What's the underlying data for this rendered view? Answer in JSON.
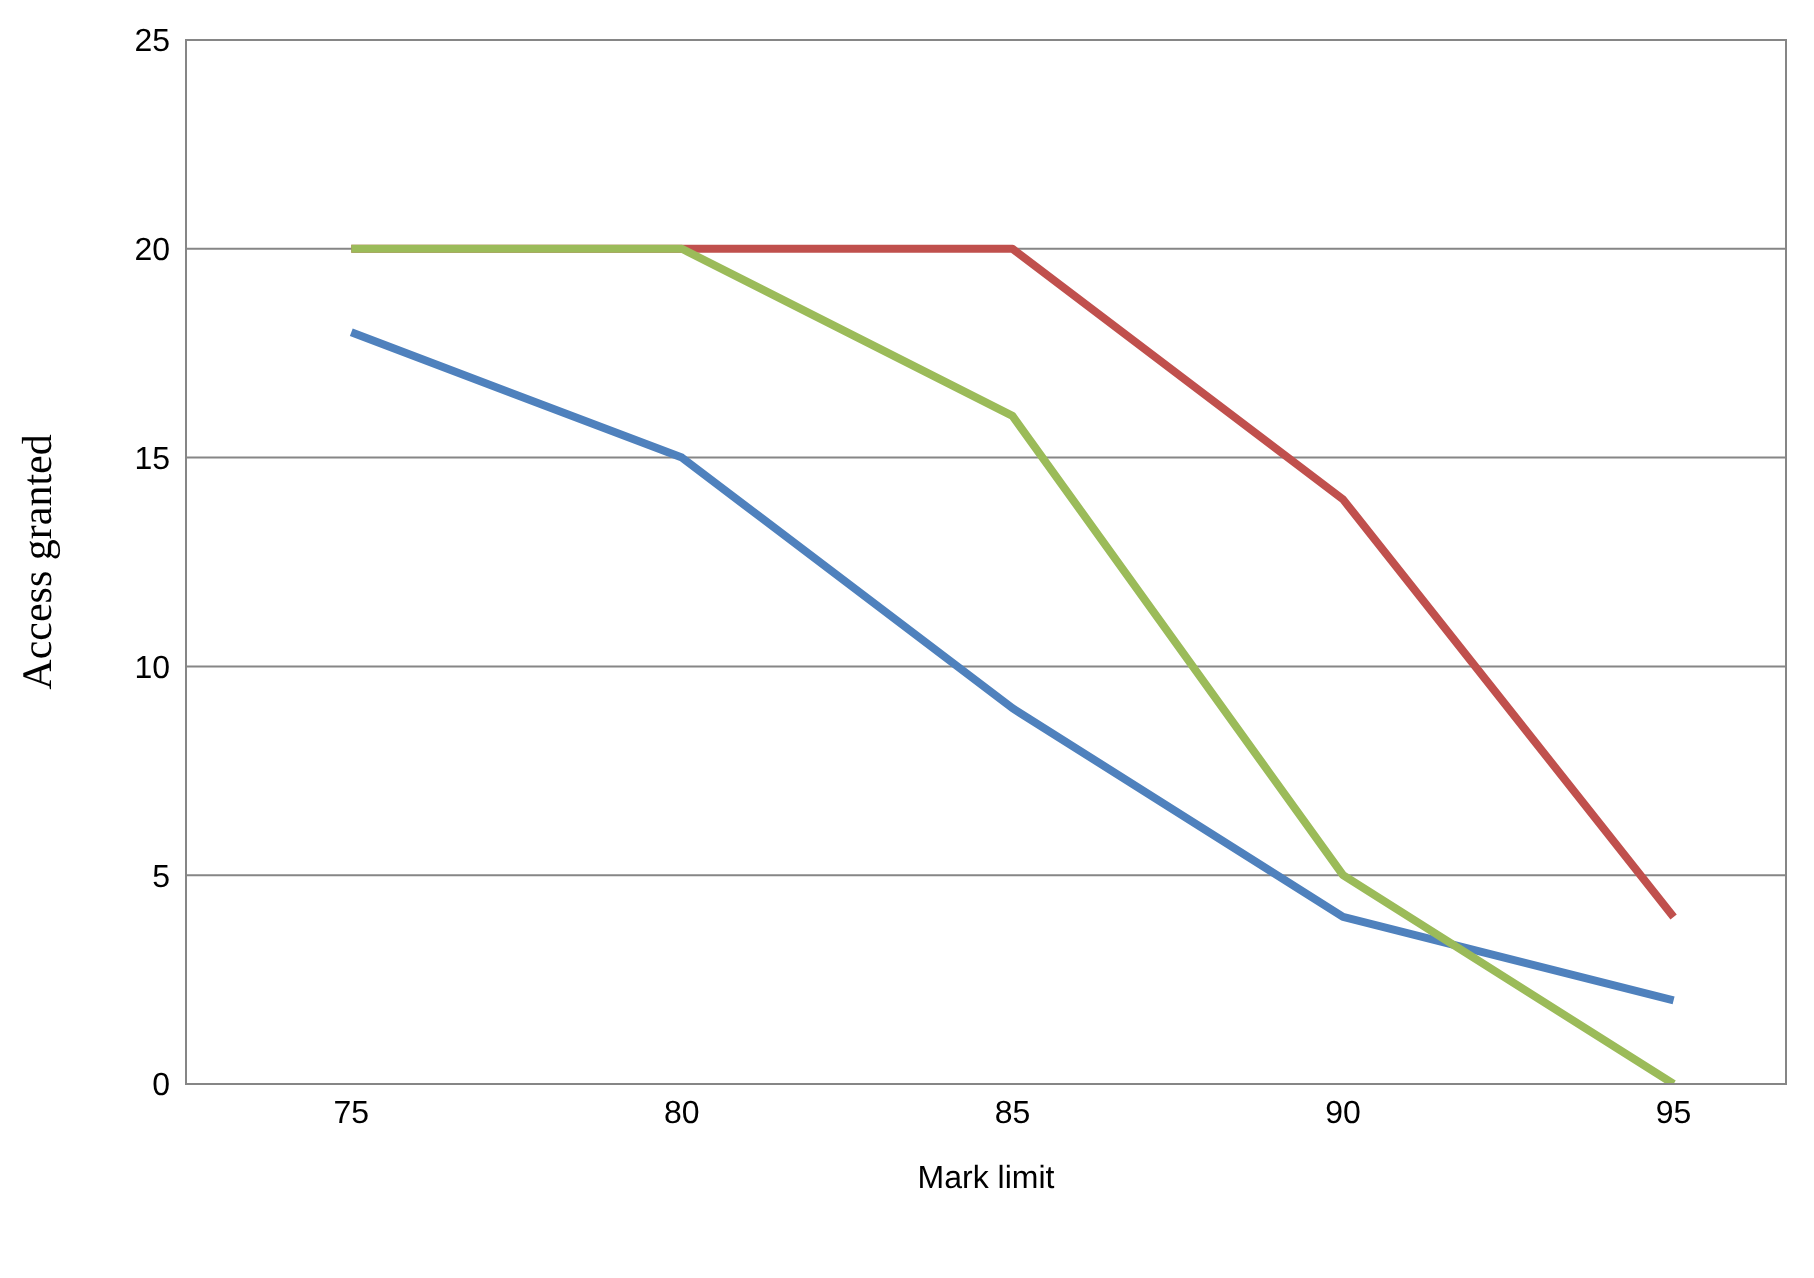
{
  "chart_data": {
    "type": "line",
    "xlabel": "Mark limit",
    "ylabel": "Access granted",
    "x": [
      75,
      80,
      85,
      90,
      95
    ],
    "xlim": [
      72.5,
      96.7
    ],
    "xticks": [
      75,
      80,
      85,
      90,
      95
    ],
    "ylim": [
      0,
      25
    ],
    "yticks": [
      0,
      5,
      10,
      15,
      20,
      25
    ],
    "grid": "y",
    "legend": false,
    "marker": "none",
    "series": [
      {
        "color": "#4f81bd",
        "values": [
          18,
          15,
          9,
          4,
          2
        ]
      },
      {
        "color": "#c0504d",
        "values": [
          20,
          20,
          20,
          14,
          4
        ]
      },
      {
        "color": "#9bbb59",
        "values": [
          20,
          20,
          16,
          5,
          0
        ]
      }
    ]
  }
}
